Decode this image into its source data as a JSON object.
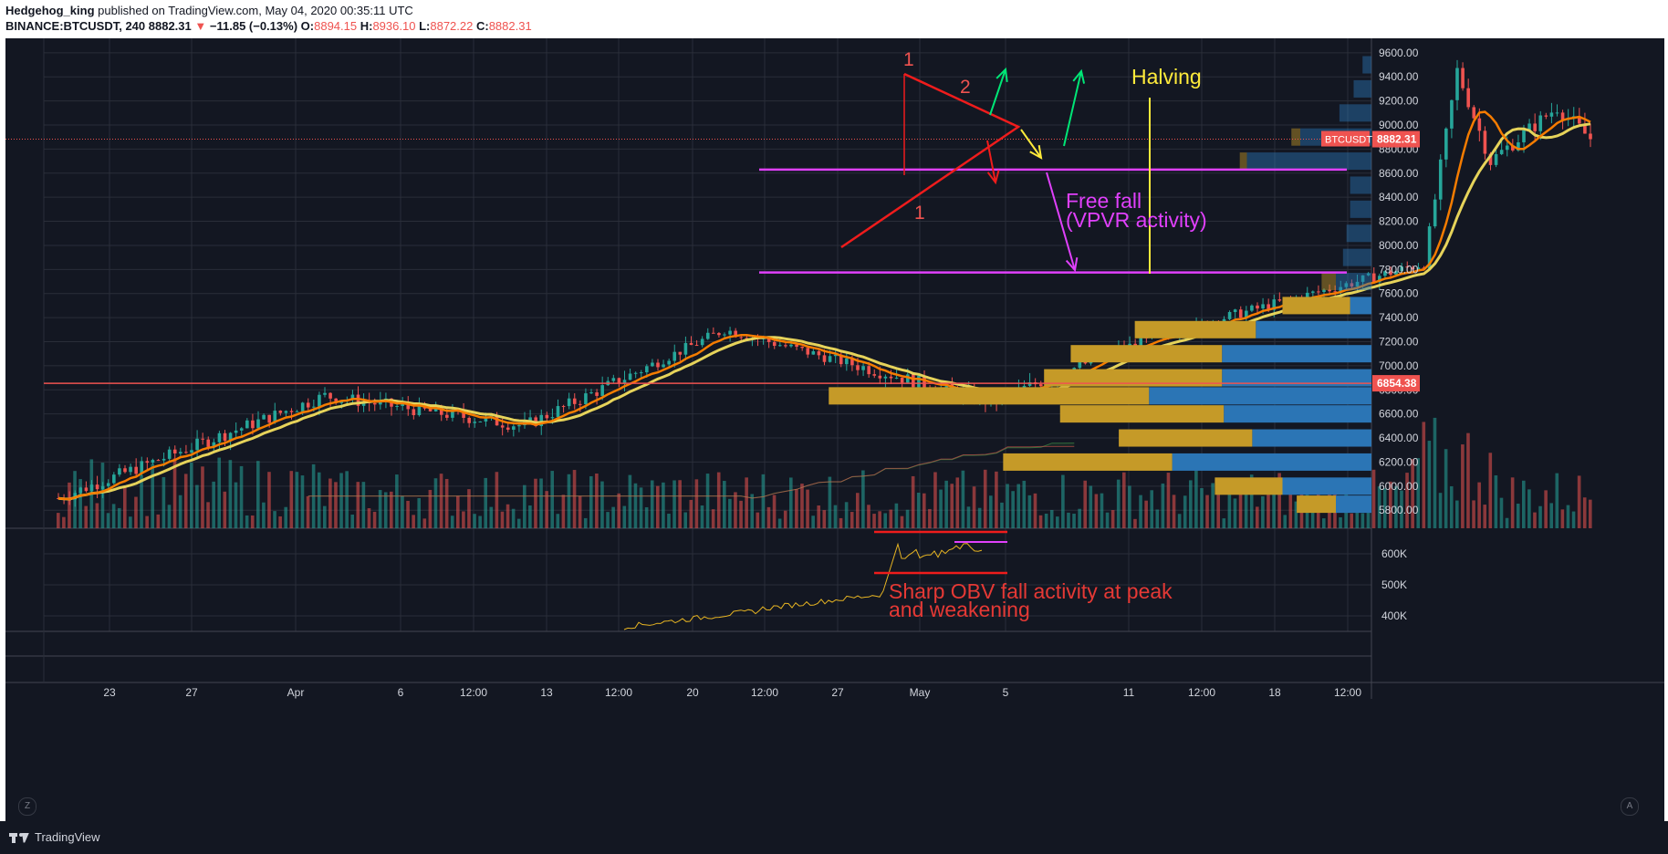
{
  "header": {
    "author": "Hedgehog_king",
    "published_text": "published on TradingView.com, May 04, 2020 00:35:11 UTC",
    "symbol": "BINANCE:BTCUSDT, 240",
    "last": "8882.31",
    "change_arrow": "▼",
    "change": "−11.85 (−0.13%)",
    "o_label": "O:",
    "o": "8894.15",
    "h_label": "H:",
    "h": "8936.10",
    "l_label": "L:",
    "l": "8872.22",
    "c_label": "C:",
    "c": "8882.31"
  },
  "footer": {
    "brand": "TradingView",
    "left_corner": "Z",
    "right_corner": "A"
  },
  "colors": {
    "background": "#131722",
    "grid": "#2a2e39",
    "up": "#26a69a",
    "down": "#ef5350",
    "sma_fast": "#f57c00",
    "sma_slow": "#e6d35a",
    "magenta": "#e040fb",
    "vp_gold": "#c59a28",
    "vp_blue": "#2b75b5"
  },
  "chart_data": {
    "type": "candlestick",
    "symbol": "BTCUSDT",
    "timeframe": "240",
    "price_axis": {
      "ticks": [
        "9600.00",
        "9400.00",
        "9200.00",
        "9000.00",
        "8800.00",
        "8600.00",
        "8400.00",
        "8200.00",
        "8000.00",
        "7800.00",
        "7600.00",
        "7400.00",
        "7200.00",
        "7000.00",
        "6800.00",
        "6600.00",
        "6400.00",
        "6200.00",
        "6000.00",
        "5800.00"
      ],
      "ylim": [
        5650,
        9720
      ]
    },
    "obv_axis": {
      "ticks": [
        "600K",
        "500K",
        "400K"
      ]
    },
    "x_ticks": [
      "23",
      "27",
      "Apr",
      "6",
      "12:00",
      "13",
      "12:00",
      "20",
      "12:00",
      "27",
      "May",
      "5",
      "11",
      "12:00",
      "18",
      "12:00"
    ],
    "price_labels": [
      {
        "text": "BTCUSDT",
        "value": "8882.31",
        "price": 8882.31,
        "color": "#ef5350"
      },
      {
        "text": "",
        "value": "6854.38",
        "price": 6854.38,
        "color": "#ef5350"
      }
    ],
    "horizontal_levels": [
      {
        "price": 6854.38,
        "color": "#ef5350"
      },
      {
        "price": 8630,
        "color": "#e040fb"
      },
      {
        "price": 7775,
        "color": "#e040fb"
      }
    ],
    "key_points": [
      {
        "date": "2020-03-19",
        "close": 5900
      },
      {
        "date": "2020-03-27",
        "close": 6750
      },
      {
        "date": "2020-04-02",
        "close": 6500
      },
      {
        "date": "2020-04-08",
        "close": 7300
      },
      {
        "date": "2020-04-16",
        "close": 6700
      },
      {
        "date": "2020-04-20",
        "close": 7150
      },
      {
        "date": "2020-04-23",
        "close": 7400
      },
      {
        "date": "2020-04-29",
        "close": 7850
      },
      {
        "date": "2020-04-30",
        "close": 9450
      },
      {
        "date": "2020-05-01",
        "close": 8700
      },
      {
        "date": "2020-05-03",
        "close": 9150
      },
      {
        "date": "2020-05-04",
        "close": 8882.31
      }
    ],
    "volume_profile": [
      {
        "price": 9500,
        "up": 0,
        "down": 5
      },
      {
        "price": 9300,
        "up": 0,
        "down": 10
      },
      {
        "price": 9100,
        "up": 0,
        "down": 18
      },
      {
        "price": 8900,
        "up": 5,
        "down": 40
      },
      {
        "price": 8700,
        "up": 4,
        "down": 70
      },
      {
        "price": 8500,
        "up": 0,
        "down": 12
      },
      {
        "price": 8300,
        "up": 0,
        "down": 12
      },
      {
        "price": 8100,
        "up": 0,
        "down": 14
      },
      {
        "price": 7900,
        "up": 0,
        "down": 16
      },
      {
        "price": 7700,
        "up": 8,
        "down": 20
      },
      {
        "price": 7500,
        "up": 38,
        "down": 12
      },
      {
        "price": 7300,
        "up": 68,
        "down": 65
      },
      {
        "price": 7100,
        "up": 85,
        "down": 84
      },
      {
        "price": 6900,
        "up": 100,
        "down": 84
      },
      {
        "price": 6750,
        "up": 180,
        "down": 125
      },
      {
        "price": 6600,
        "up": 92,
        "down": 83
      },
      {
        "price": 6400,
        "up": 75,
        "down": 67
      },
      {
        "price": 6200,
        "up": 95,
        "down": 112
      },
      {
        "price": 6000,
        "up": 38,
        "down": 50
      },
      {
        "price": 5850,
        "up": 22,
        "down": 20
      }
    ],
    "annotations": [
      {
        "text": "1",
        "color": "#ef5350"
      },
      {
        "text": "2",
        "color": "#ef5350"
      },
      {
        "text": "1",
        "color": "#ef5350"
      },
      {
        "text": "Halving",
        "color": "#ffeb3b"
      },
      {
        "text": "Free fall",
        "color": "#e040fb"
      },
      {
        "text": "(VPVR activity)",
        "color": "#e040fb"
      },
      {
        "text": "Sharp OBV fall activity at peak",
        "color": "#e53935"
      },
      {
        "text": "and weakening",
        "color": "#e53935"
      }
    ]
  }
}
